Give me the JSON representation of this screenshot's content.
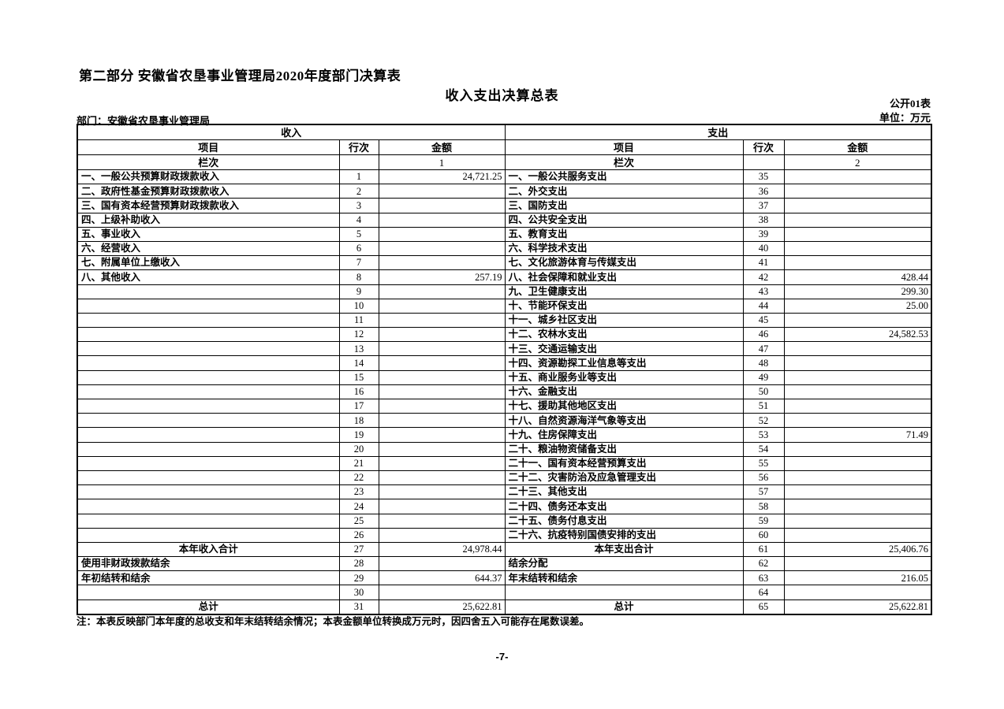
{
  "page": {
    "part_title": "第二部分 安徽省农垦事业管理局2020年度部门决算表",
    "table_title": "收入支出决算总表",
    "form_code": "公开01表",
    "department_label": "部门：安徽省农垦事业管理局",
    "unit_label": "单位：万元",
    "note": "注：本表反映部门本年度的总收支和年末结转结余情况；本表金额单位转换成万元时，因四舍五入可能存在尾数误差。",
    "page_number": "-7-"
  },
  "table": {
    "income_section_header": "收入",
    "expenditure_section_header": "支出",
    "col_headers": {
      "item": "项目",
      "line_no": "行次",
      "amount": "金额"
    },
    "column_index_label": "栏次",
    "income_column_index": "1",
    "expenditure_column_index": "2",
    "income_rows": [
      {
        "label": "一、一般公共预算财政拨款收入",
        "line": "1",
        "amount": "24,721.25",
        "total": false
      },
      {
        "label": "二、政府性基金预算财政拨款收入",
        "line": "2",
        "amount": "",
        "total": false
      },
      {
        "label": "三、国有资本经营预算财政拨款收入",
        "line": "3",
        "amount": "",
        "total": false
      },
      {
        "label": "四、上级补助收入",
        "line": "4",
        "amount": "",
        "total": false
      },
      {
        "label": "五、事业收入",
        "line": "5",
        "amount": "",
        "total": false
      },
      {
        "label": "六、经营收入",
        "line": "6",
        "amount": "",
        "total": false
      },
      {
        "label": "七、附属单位上缴收入",
        "line": "7",
        "amount": "",
        "total": false
      },
      {
        "label": "八、其他收入",
        "line": "8",
        "amount": "257.19",
        "total": false
      },
      {
        "label": "",
        "line": "9",
        "amount": "",
        "total": false
      },
      {
        "label": "",
        "line": "10",
        "amount": "",
        "total": false
      },
      {
        "label": "",
        "line": "11",
        "amount": "",
        "total": false
      },
      {
        "label": "",
        "line": "12",
        "amount": "",
        "total": false
      },
      {
        "label": "",
        "line": "13",
        "amount": "",
        "total": false
      },
      {
        "label": "",
        "line": "14",
        "amount": "",
        "total": false
      },
      {
        "label": "",
        "line": "15",
        "amount": "",
        "total": false
      },
      {
        "label": "",
        "line": "16",
        "amount": "",
        "total": false
      },
      {
        "label": "",
        "line": "17",
        "amount": "",
        "total": false
      },
      {
        "label": "",
        "line": "18",
        "amount": "",
        "total": false
      },
      {
        "label": "",
        "line": "19",
        "amount": "",
        "total": false
      },
      {
        "label": "",
        "line": "20",
        "amount": "",
        "total": false
      },
      {
        "label": "",
        "line": "21",
        "amount": "",
        "total": false
      },
      {
        "label": "",
        "line": "22",
        "amount": "",
        "total": false
      },
      {
        "label": "",
        "line": "23",
        "amount": "",
        "total": false
      },
      {
        "label": "",
        "line": "24",
        "amount": "",
        "total": false
      },
      {
        "label": "",
        "line": "25",
        "amount": "",
        "total": false
      },
      {
        "label": "",
        "line": "26",
        "amount": "",
        "total": false
      },
      {
        "label": "本年收入合计",
        "line": "27",
        "amount": "24,978.44",
        "total": true
      },
      {
        "label": "使用非财政拨款结余",
        "line": "28",
        "amount": "",
        "total": false
      },
      {
        "label": "年初结转和结余",
        "line": "29",
        "amount": "644.37",
        "total": false
      },
      {
        "label": "",
        "line": "30",
        "amount": "",
        "total": false
      },
      {
        "label": "总计",
        "line": "31",
        "amount": "25,622.81",
        "total": true
      }
    ],
    "expenditure_rows": [
      {
        "label": "一、一般公共服务支出",
        "line": "35",
        "amount": "",
        "total": false
      },
      {
        "label": "二、外交支出",
        "line": "36",
        "amount": "",
        "total": false
      },
      {
        "label": "三、国防支出",
        "line": "37",
        "amount": "",
        "total": false
      },
      {
        "label": "四、公共安全支出",
        "line": "38",
        "amount": "",
        "total": false
      },
      {
        "label": "五、教育支出",
        "line": "39",
        "amount": "",
        "total": false
      },
      {
        "label": "六、科学技术支出",
        "line": "40",
        "amount": "",
        "total": false
      },
      {
        "label": "七、文化旅游体育与传媒支出",
        "line": "41",
        "amount": "",
        "total": false
      },
      {
        "label": "八、社会保障和就业支出",
        "line": "42",
        "amount": "428.44",
        "total": false
      },
      {
        "label": "九、卫生健康支出",
        "line": "43",
        "amount": "299.30",
        "total": false
      },
      {
        "label": "十、节能环保支出",
        "line": "44",
        "amount": "25.00",
        "total": false
      },
      {
        "label": "十一、城乡社区支出",
        "line": "45",
        "amount": "",
        "total": false
      },
      {
        "label": "十二、农林水支出",
        "line": "46",
        "amount": "24,582.53",
        "total": false
      },
      {
        "label": "十三、交通运输支出",
        "line": "47",
        "amount": "",
        "total": false
      },
      {
        "label": "十四、资源勘探工业信息等支出",
        "line": "48",
        "amount": "",
        "total": false
      },
      {
        "label": "十五、商业服务业等支出",
        "line": "49",
        "amount": "",
        "total": false
      },
      {
        "label": "十六、金融支出",
        "line": "50",
        "amount": "",
        "total": false
      },
      {
        "label": "十七、援助其他地区支出",
        "line": "51",
        "amount": "",
        "total": false
      },
      {
        "label": "十八、自然资源海洋气象等支出",
        "line": "52",
        "amount": "",
        "total": false
      },
      {
        "label": "十九、住房保障支出",
        "line": "53",
        "amount": "71.49",
        "total": false
      },
      {
        "label": "二十、粮油物资储备支出",
        "line": "54",
        "amount": "",
        "total": false
      },
      {
        "label": "二十一、国有资本经营预算支出",
        "line": "55",
        "amount": "",
        "total": false
      },
      {
        "label": "二十二、灾害防治及应急管理支出",
        "line": "56",
        "amount": "",
        "total": false
      },
      {
        "label": "二十三、其他支出",
        "line": "57",
        "amount": "",
        "total": false
      },
      {
        "label": "二十四、债务还本支出",
        "line": "58",
        "amount": "",
        "total": false
      },
      {
        "label": "二十五、债务付息支出",
        "line": "59",
        "amount": "",
        "total": false
      },
      {
        "label": "二十六、抗疫特别国债安排的支出",
        "line": "60",
        "amount": "",
        "total": false
      },
      {
        "label": "本年支出合计",
        "line": "61",
        "amount": "25,406.76",
        "total": true
      },
      {
        "label": "结余分配",
        "line": "62",
        "amount": "",
        "total": false
      },
      {
        "label": "年末结转和结余",
        "line": "63",
        "amount": "216.05",
        "total": false
      },
      {
        "label": "",
        "line": "64",
        "amount": "",
        "total": false
      },
      {
        "label": "总计",
        "line": "65",
        "amount": "25,622.81",
        "total": true
      }
    ]
  }
}
